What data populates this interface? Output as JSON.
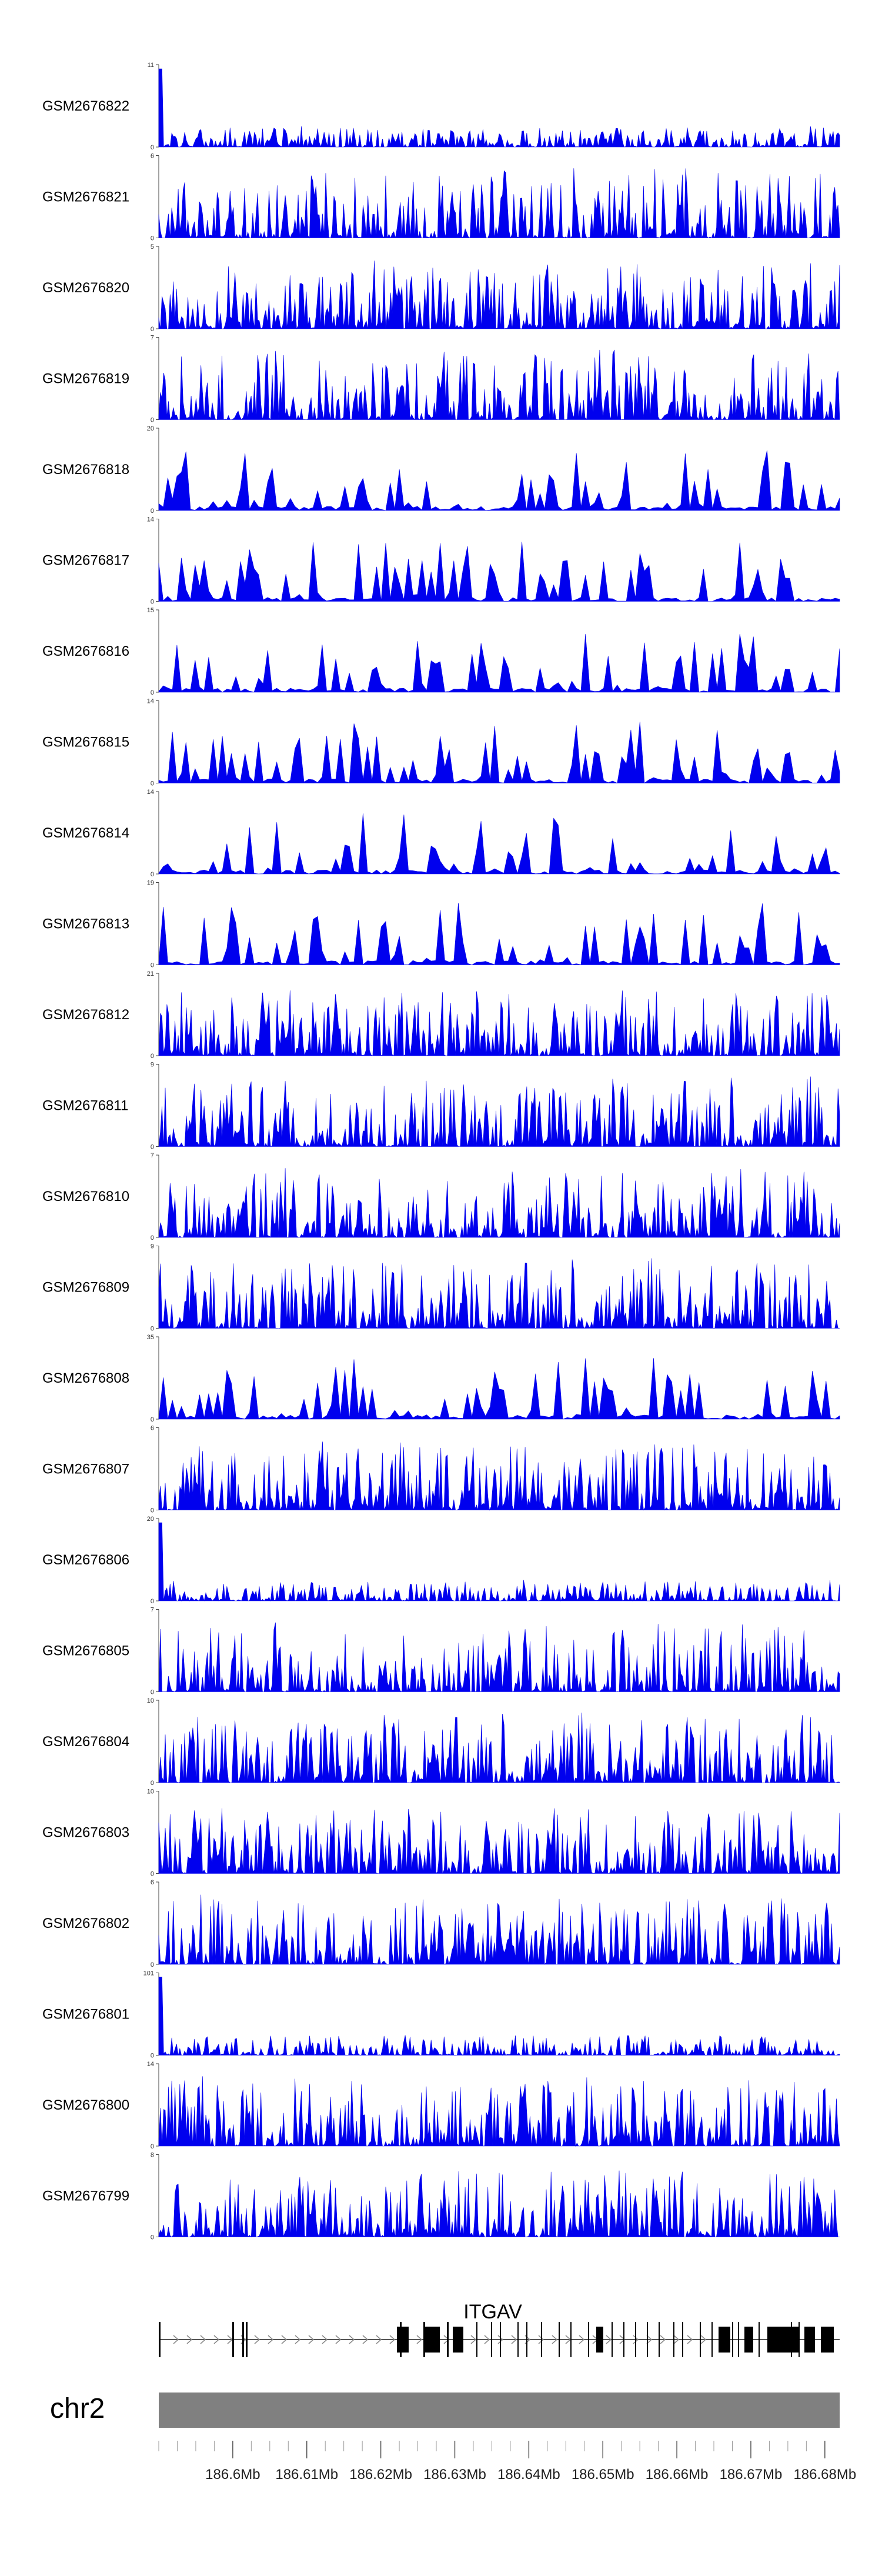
{
  "chart_data": {
    "type": "area",
    "track_color": "#0000ee",
    "chromosome": "chr2",
    "region": [
      186590000,
      186682000
    ],
    "tracks": [
      {
        "label": "GSM2676822",
        "ymax": 11,
        "ymin": 0
      },
      {
        "label": "GSM2676821",
        "ymax": 6,
        "ymin": 0
      },
      {
        "label": "GSM2676820",
        "ymax": 5,
        "ymin": 0
      },
      {
        "label": "GSM2676819",
        "ymax": 7,
        "ymin": 0
      },
      {
        "label": "GSM2676818",
        "ymax": 20,
        "ymin": 0
      },
      {
        "label": "GSM2676817",
        "ymax": 14,
        "ymin": 0
      },
      {
        "label": "GSM2676816",
        "ymax": 15,
        "ymin": 0
      },
      {
        "label": "GSM2676815",
        "ymax": 14,
        "ymin": 0
      },
      {
        "label": "GSM2676814",
        "ymax": 14,
        "ymin": 0
      },
      {
        "label": "GSM2676813",
        "ymax": 19,
        "ymin": 0
      },
      {
        "label": "GSM2676812",
        "ymax": 21,
        "ymin": 0
      },
      {
        "label": "GSM2676811",
        "ymax": 9,
        "ymin": 0
      },
      {
        "label": "GSM2676810",
        "ymax": 7,
        "ymin": 0
      },
      {
        "label": "GSM2676809",
        "ymax": 9,
        "ymin": 0
      },
      {
        "label": "GSM2676808",
        "ymax": 35,
        "ymin": 0
      },
      {
        "label": "GSM2676807",
        "ymax": 6,
        "ymin": 0
      },
      {
        "label": "GSM2676806",
        "ymax": 20,
        "ymin": 0
      },
      {
        "label": "GSM2676805",
        "ymax": 7,
        "ymin": 0
      },
      {
        "label": "GSM2676804",
        "ymax": 10,
        "ymin": 0
      },
      {
        "label": "GSM2676803",
        "ymax": 10,
        "ymin": 0
      },
      {
        "label": "GSM2676802",
        "ymax": 6,
        "ymin": 0
      },
      {
        "label": "GSM2676801",
        "ymax": 101,
        "ymin": 0
      },
      {
        "label": "GSM2676800",
        "ymax": 14,
        "ymin": 0
      },
      {
        "label": "GSM2676799",
        "ymax": 8,
        "ymin": 0
      }
    ],
    "gene": {
      "name": "ITGAV",
      "strand": "+",
      "start": 186590000,
      "end": 186682000
    },
    "x_axis": {
      "ticks": [
        "186.6Mb",
        "186.61Mb",
        "186.62Mb",
        "186.63Mb",
        "186.64Mb",
        "186.65Mb",
        "186.66Mb",
        "186.67Mb",
        "186.68Mb"
      ],
      "tick_values": [
        186600000,
        186610000,
        186620000,
        186630000,
        186640000,
        186650000,
        186660000,
        186670000,
        186680000
      ]
    }
  }
}
